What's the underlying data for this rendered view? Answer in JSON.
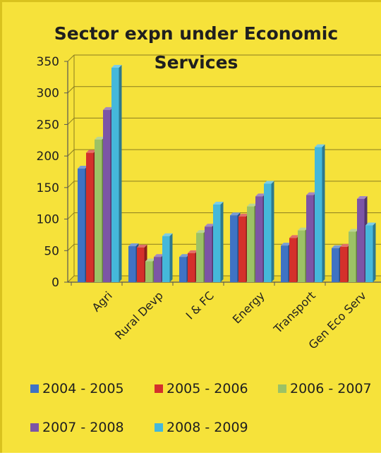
{
  "chart_data": {
    "type": "bar",
    "title_lines": [
      "Sector expn under Economic",
      "Services"
    ],
    "xlabel": "",
    "ylabel": "",
    "ylim": [
      0,
      350
    ],
    "yticks": [
      0,
      50,
      100,
      150,
      200,
      250,
      300,
      350
    ],
    "grid": true,
    "legend_position": "bottom",
    "categories": [
      "Agri",
      "Rural Devp",
      "I & FC",
      "Energy",
      "Transport",
      "Gen Eco Serv"
    ],
    "series": [
      {
        "name": "2004 - 2005",
        "color": "#3f73c4",
        "values": [
          180,
          57,
          40,
          106,
          58,
          54
        ]
      },
      {
        "name": "2005 - 2006",
        "color": "#d4302b",
        "values": [
          205,
          55,
          46,
          104,
          70,
          56
        ]
      },
      {
        "name": "2006 - 2007",
        "color": "#9cc265",
        "values": [
          226,
          33,
          78,
          120,
          82,
          80
        ]
      },
      {
        "name": "2007 - 2008",
        "color": "#7c55a6",
        "values": [
          273,
          40,
          88,
          136,
          138,
          132
        ]
      },
      {
        "name": "2008 - 2009",
        "color": "#45b8da",
        "values": [
          340,
          73,
          123,
          156,
          214,
          90
        ]
      }
    ]
  }
}
